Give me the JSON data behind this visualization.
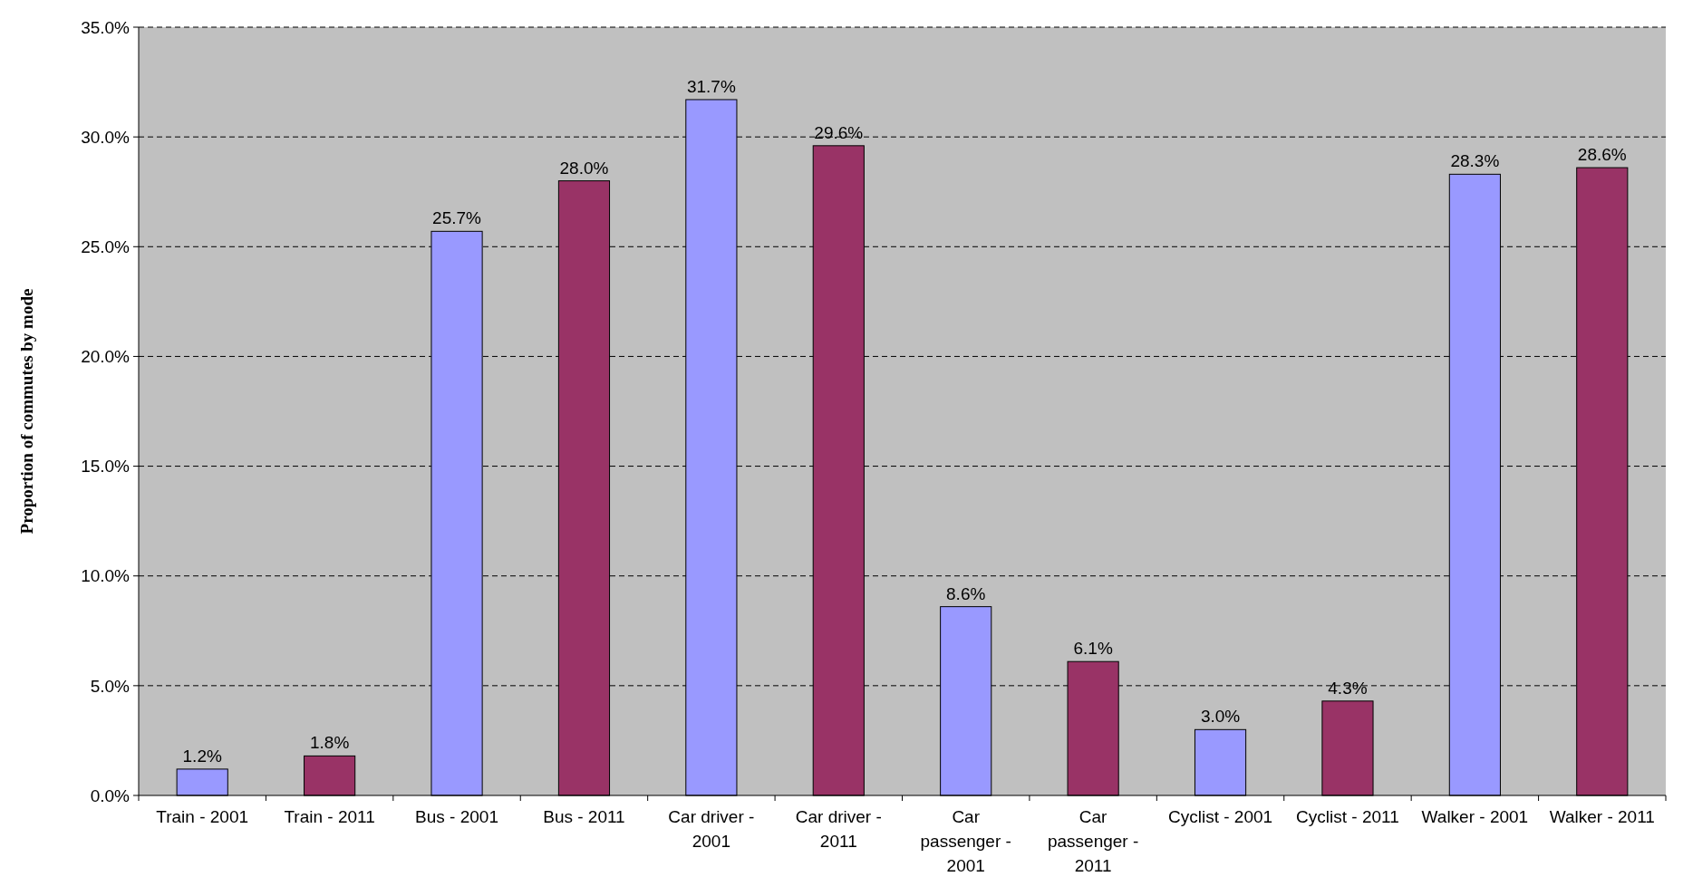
{
  "chart_data": {
    "type": "bar",
    "ylabel": "Proportion of commutes by mode",
    "categories": [
      "Train - 2001",
      "Train - 2011",
      "Bus - 2001",
      "Bus  - 2011",
      "Car driver - 2001",
      "Car driver - 2011",
      "Car passenger - 2001",
      "Car passenger - 2011",
      "Cyclist - 2001",
      "Cyclist - 2011",
      "Walker - 2001",
      "Walker - 2011"
    ],
    "values": [
      1.2,
      1.8,
      25.7,
      28.0,
      31.7,
      29.6,
      8.6,
      6.1,
      3.0,
      4.3,
      28.3,
      28.6
    ],
    "value_labels": [
      "1.2%",
      "1.8%",
      "25.7%",
      "28.0%",
      "31.7%",
      "29.6%",
      "8.6%",
      "6.1%",
      "3.0%",
      "4.3%",
      "28.3%",
      "28.6%"
    ],
    "colors": [
      "#9999ff",
      "#993366",
      "#9999ff",
      "#993366",
      "#9999ff",
      "#993366",
      "#9999ff",
      "#993366",
      "#9999ff",
      "#993366",
      "#9999ff",
      "#993366"
    ],
    "ylim": [
      0,
      35
    ],
    "yticks": [
      {
        "value": 0,
        "label": "0.0%"
      },
      {
        "value": 5,
        "label": "5.0%"
      },
      {
        "value": 10,
        "label": "10.0%"
      },
      {
        "value": 15,
        "label": "15.0%"
      },
      {
        "value": 20,
        "label": "20.0%"
      },
      {
        "value": 25,
        "label": "25.0%"
      },
      {
        "value": 30,
        "label": "30.0%"
      },
      {
        "value": 35,
        "label": "35.0%"
      }
    ],
    "grid": "y",
    "line_style": "dashed"
  }
}
